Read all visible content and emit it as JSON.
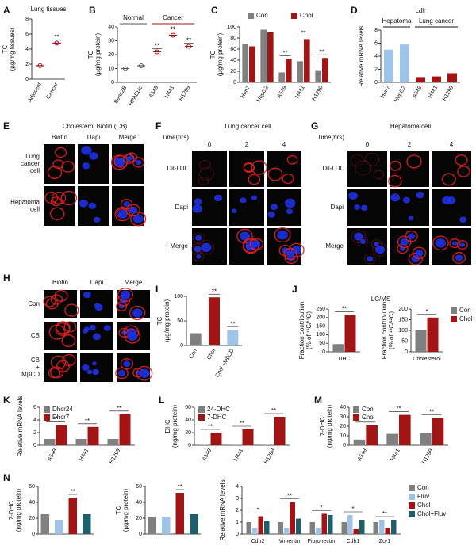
{
  "chart_data": [
    {
      "type": "dot",
      "panel": "A",
      "title": "Lung tissues",
      "ylabel": [
        "TC",
        "(µg/mg tissues)"
      ],
      "categories": [
        "Adjacent",
        "Cancer"
      ],
      "values": [
        1.8,
        4.8
      ],
      "color": "#a31515",
      "ylim": [
        0,
        8
      ],
      "yticks": [
        0,
        2,
        4,
        6,
        8
      ],
      "significance": [
        null,
        "**"
      ]
    },
    {
      "type": "dot",
      "panel": "B",
      "ylabel": [
        "TC",
        "(µg/mg protein)"
      ],
      "categories": [
        "Beas2B",
        "HPAEpic",
        "A549",
        "H441",
        "H1299"
      ],
      "values": [
        10,
        12,
        22,
        34,
        26
      ],
      "colors": [
        "#555555",
        "#555555",
        "#a31515",
        "#a31515",
        "#a31515"
      ],
      "ylim": [
        0,
        40
      ],
      "yticks": [
        0,
        10,
        20,
        30,
        40
      ],
      "significance": [
        null,
        null,
        "**",
        "**",
        "**"
      ],
      "groups": [
        {
          "label": "Normal",
          "size": 2,
          "color": "#555555"
        },
        {
          "label": "Cancer",
          "size": 3,
          "color": "#a31515"
        }
      ]
    },
    {
      "type": "bar",
      "panel": "C",
      "ylabel": [
        "TC",
        "(µg/mg protein)"
      ],
      "categories": [
        "Huh7",
        "HepG2",
        "A549",
        "H441",
        "H1299"
      ],
      "series": [
        {
          "name": "Con",
          "color": "#808080",
          "values": [
            70,
            95,
            18,
            38,
            22
          ]
        },
        {
          "name": "Chol",
          "color": "#a31515",
          "values": [
            65,
            90,
            42,
            78,
            44
          ]
        }
      ],
      "ylim": [
        0,
        100
      ],
      "yticks": [
        0,
        20,
        40,
        60,
        80,
        100
      ],
      "significance": [
        null,
        null,
        "**",
        "**",
        "**"
      ],
      "legend": "top"
    },
    {
      "type": "bar",
      "panel": "D",
      "title": "Ldlr",
      "ylabel": [
        "Relative mRNA levels"
      ],
      "categories": [
        "Huh7",
        "HepG2",
        "A549",
        "H441",
        "H1299"
      ],
      "values": [
        5,
        5.8,
        0.8,
        0.9,
        1.4
      ],
      "colors": [
        "#9dc3e6",
        "#9dc3e6",
        "#a31515",
        "#a31515",
        "#a31515"
      ],
      "ylim": [
        0,
        8
      ],
      "yticks": [
        0,
        2,
        4,
        6,
        8
      ],
      "groups": [
        {
          "label": "Hepatoma",
          "size": 2,
          "color": "#111111"
        },
        {
          "label": "Lung cancer",
          "size": 3,
          "color": "#111111"
        }
      ]
    },
    {
      "type": "bar",
      "panel": "I",
      "ylabel": [
        "TC",
        "(µg/mg protein)"
      ],
      "categories": [
        "Con",
        "Chol",
        "Chol +MβCD"
      ],
      "values": [
        25,
        98,
        32
      ],
      "colors": [
        "#808080",
        "#a31515",
        "#9dc3e6"
      ],
      "ylim": [
        0,
        100
      ],
      "yticks": [
        0,
        50,
        100
      ],
      "significance": [
        null,
        "**",
        "**"
      ]
    },
    {
      "type": "bar",
      "panel": "J",
      "title": "LC/MS",
      "ylabel": [
        "Fraction contribution",
        "(% of ¹³C/¹²C)"
      ],
      "categories": [
        "DHC"
      ],
      "series": [
        {
          "name": "Con",
          "color": "#808080",
          "values": [
            45
          ]
        },
        {
          "name": "Chol",
          "color": "#a31515",
          "values": [
            215
          ]
        }
      ],
      "ylim": [
        0,
        250
      ],
      "yticks": [
        0,
        50,
        100,
        150,
        200,
        250
      ],
      "significance": [
        "**"
      ]
    },
    {
      "type": "bar",
      "ylabel": [
        "Fraction contribution",
        "(% of ¹³C/¹²C)"
      ],
      "categories": [
        "Cholesterol"
      ],
      "series": [
        {
          "name": "Con",
          "color": "#808080",
          "values": [
            100
          ]
        },
        {
          "name": "Chol",
          "color": "#a31515",
          "values": [
            160
          ]
        }
      ],
      "ylim": [
        0,
        200
      ],
      "yticks": [
        0,
        50,
        100,
        150,
        200
      ],
      "significance": [
        "*"
      ],
      "legend": "right"
    },
    {
      "type": "bar",
      "panel": "K",
      "ylabel": [
        "Relative mRNA levels"
      ],
      "categories": [
        "A549",
        "H441",
        "H1299"
      ],
      "series": [
        {
          "name": "Dhcr24",
          "color": "#808080",
          "values": [
            1,
            1,
            1
          ]
        },
        {
          "name": "Dhcr7",
          "color": "#a31515",
          "values": [
            3.2,
            2.9,
            4.9
          ]
        }
      ],
      "ylim": [
        0,
        6
      ],
      "yticks": [
        0,
        2,
        4,
        6
      ],
      "significance": [
        "**",
        "**",
        "**"
      ],
      "legend": "upper left"
    },
    {
      "type": "bar",
      "panel": "L",
      "ylabel": [
        "DHC",
        "(ng/mg protein)"
      ],
      "categories": [
        "A549",
        "H441",
        "H1299"
      ],
      "series": [
        {
          "name": "24-DHC",
          "color": "#808080",
          "values": [
            0.5,
            0.5,
            0.5
          ]
        },
        {
          "name": "7-DHC",
          "color": "#a31515",
          "values": [
            20,
            25,
            45
          ]
        }
      ],
      "ylim": [
        0,
        60
      ],
      "yticks": [
        0,
        20,
        40,
        60
      ],
      "significance": [
        "**",
        "**",
        "**"
      ],
      "legend": "upper left"
    },
    {
      "type": "bar",
      "panel": "M",
      "ylabel": [
        "7-DHC",
        "(ng/mg protein)"
      ],
      "categories": [
        "A549",
        "H441",
        "H1299"
      ],
      "series": [
        {
          "name": "Con",
          "color": "#808080",
          "values": [
            6,
            12,
            13
          ]
        },
        {
          "name": "Chol",
          "color": "#a31515",
          "values": [
            21,
            32,
            29
          ]
        }
      ],
      "ylim": [
        0,
        40
      ],
      "yticks": [
        0,
        10,
        20,
        30,
        40
      ],
      "significance": [
        "**",
        "**",
        "**"
      ],
      "legend": "upper left"
    },
    {
      "type": "bar",
      "panel": "N",
      "ylabel": [
        "7-DHC",
        "(ng/mg protein)"
      ],
      "categories": [
        null,
        null,
        null,
        null
      ],
      "values": [
        25,
        18,
        46,
        25
      ],
      "colors": [
        "#808080",
        "#9dc3e6",
        "#a31515",
        "#1f5f6b"
      ],
      "ylim": [
        0,
        60
      ],
      "yticks": [
        0,
        20,
        40,
        60
      ],
      "significance": [
        null,
        null,
        "**",
        null
      ]
    },
    {
      "type": "bar",
      "ylabel": [
        "TC",
        "(µg/mg protein)"
      ],
      "categories": [
        null,
        null,
        null,
        null
      ],
      "values": [
        22,
        22,
        52,
        25
      ],
      "colors": [
        "#808080",
        "#9dc3e6",
        "#a31515",
        "#1f5f6b"
      ],
      "ylim": [
        0,
        60
      ],
      "yticks": [
        0,
        20,
        40,
        60
      ],
      "significance": [
        null,
        null,
        "**",
        null
      ]
    },
    {
      "type": "bar",
      "ylabel": [
        "Relative mRNA levels"
      ],
      "categories": [
        "Cdh2",
        "Vimentin",
        "Fibronectin",
        "Cdh1",
        "Zo-1"
      ],
      "series": [
        {
          "name": "Con",
          "color": "#808080",
          "values": [
            1,
            1,
            1,
            1,
            1
          ]
        },
        {
          "name": "Fluv",
          "color": "#9dc3e6",
          "values": [
            0.5,
            0.5,
            0.5,
            1.6,
            1.2
          ]
        },
        {
          "name": "Chol",
          "color": "#a31515",
          "values": [
            1.5,
            2.7,
            1.7,
            0.4,
            0.5
          ]
        },
        {
          "name": "Chol+Fluv",
          "color": "#1f5f6b",
          "values": [
            1.1,
            1.3,
            1.6,
            1.2,
            1.2
          ]
        }
      ],
      "ylim": [
        0,
        4
      ],
      "yticks": [
        0,
        1,
        2,
        3,
        4
      ],
      "significance": [
        "*",
        "**",
        "*",
        "*",
        "**"
      ],
      "legend": "right"
    }
  ],
  "image_panels": [
    {
      "panel": "E",
      "title": "Cholesterol Biotin (CB)",
      "columns": [
        "Biotin",
        "Dapi",
        "Merge"
      ],
      "rows": [
        [
          "Lung",
          "cancer",
          "cell"
        ],
        [
          "Hepatoma",
          "cell"
        ]
      ],
      "channel_axis": "columns",
      "channels": [
        "red",
        "blue",
        "merge"
      ]
    },
    {
      "panel": "F",
      "title": "Lung cancer cell",
      "time_label": "Time(hrs)",
      "columns": [
        "0",
        "2",
        "4"
      ],
      "rows": [
        [
          "Dil-LDL"
        ],
        [
          "Dapi"
        ],
        [
          "Merge"
        ]
      ],
      "channel_axis": "rows",
      "channels": [
        "red",
        "blue",
        "merge"
      ]
    },
    {
      "panel": "G",
      "title": "Hepatoma cell",
      "time_label": "Time(hrs)",
      "columns": [
        "0",
        "2",
        "4"
      ],
      "rows": [
        [
          "Dil-LDL"
        ],
        [
          "Dapi"
        ],
        [
          "Merge"
        ]
      ],
      "channel_axis": "rows",
      "channels": [
        "red",
        "blue",
        "merge"
      ]
    },
    {
      "panel": "H",
      "columns": [
        "Biotin",
        "Dapi",
        "Merge"
      ],
      "rows": [
        [
          "Con"
        ],
        [
          "CB"
        ],
        [
          "CB",
          "+",
          "MβCD"
        ]
      ],
      "channel_axis": "columns",
      "channels": [
        "red",
        "blue",
        "merge"
      ]
    }
  ]
}
